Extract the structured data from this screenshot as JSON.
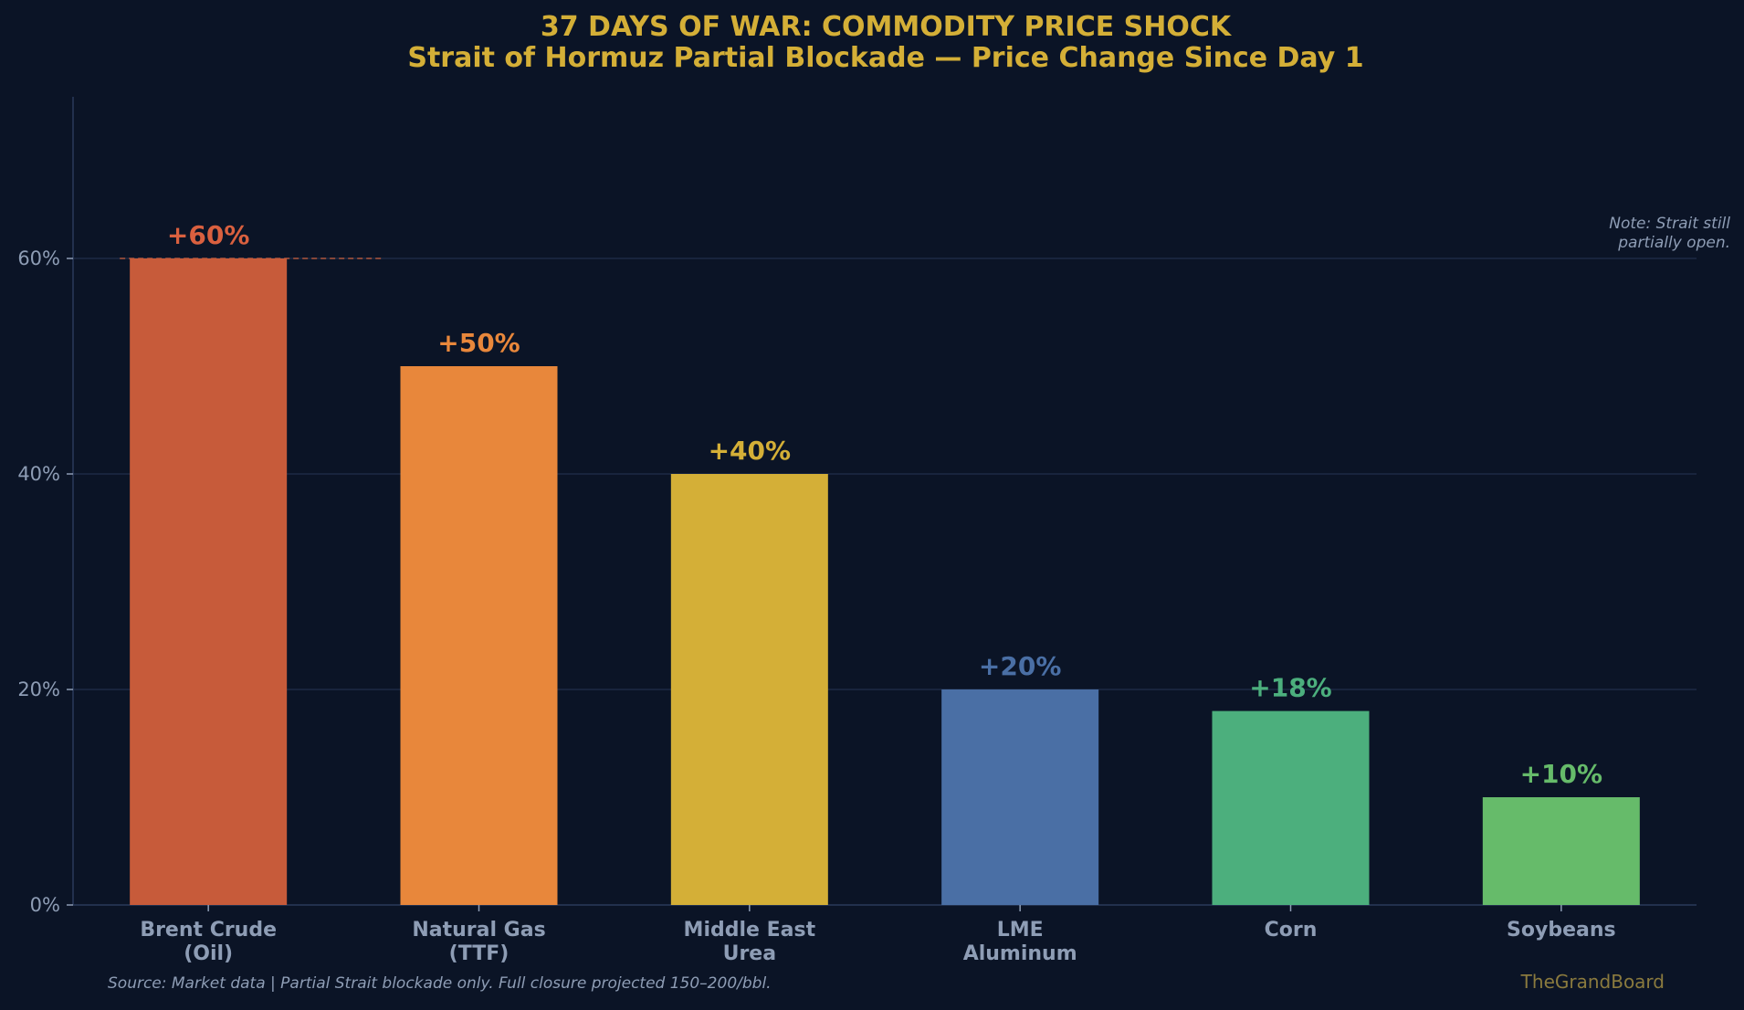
{
  "chart_data": {
    "type": "bar",
    "title": "37 DAYS OF WAR: COMMODITY PRICE SHOCK",
    "subtitle": "Strait of Hormuz Partial Blockade — Price Change Since Day 1",
    "categories": [
      [
        "Brent Crude",
        "(Oil)"
      ],
      [
        "Natural Gas",
        "(TTF)"
      ],
      [
        "Middle East",
        "Urea"
      ],
      [
        "LME",
        "Aluminum"
      ],
      [
        "Corn"
      ],
      [
        "Soybeans"
      ]
    ],
    "values": [
      60,
      50,
      40,
      20,
      18,
      10
    ],
    "data_labels": [
      "+60%",
      "+50%",
      "+40%",
      "+20%",
      "+18%",
      "+10%"
    ],
    "bar_colors": [
      "#c75b3a",
      "#e8873b",
      "#d4af37",
      "#4a6fa5",
      "#4caf7d",
      "#66bb6a"
    ],
    "label_colors": [
      "#d9603f",
      "#e8873b",
      "#d4af37",
      "#4a6fa5",
      "#4caf7d",
      "#66bb6a"
    ],
    "ylim": [
      0,
      75
    ],
    "yticks": [
      0,
      20,
      40,
      60
    ],
    "ytick_labels": [
      "0%",
      "20%",
      "40%",
      "60%"
    ],
    "xlabel": "",
    "ylabel": "",
    "grid": true,
    "reference_line": {
      "value": 60,
      "color": "#c75b3a"
    },
    "note": [
      "Note: Strait still",
      "partially open."
    ],
    "source": "Source: Market data | Partial Strait blockade only. Full closure projected 150–200/bbl.",
    "brand": "TheGrandBoard"
  },
  "colors": {
    "background": "#0b1426",
    "grid": "#1c2a45",
    "axis": "#2a3a5a",
    "title": "#d4af37",
    "text": "#8e9db5"
  }
}
